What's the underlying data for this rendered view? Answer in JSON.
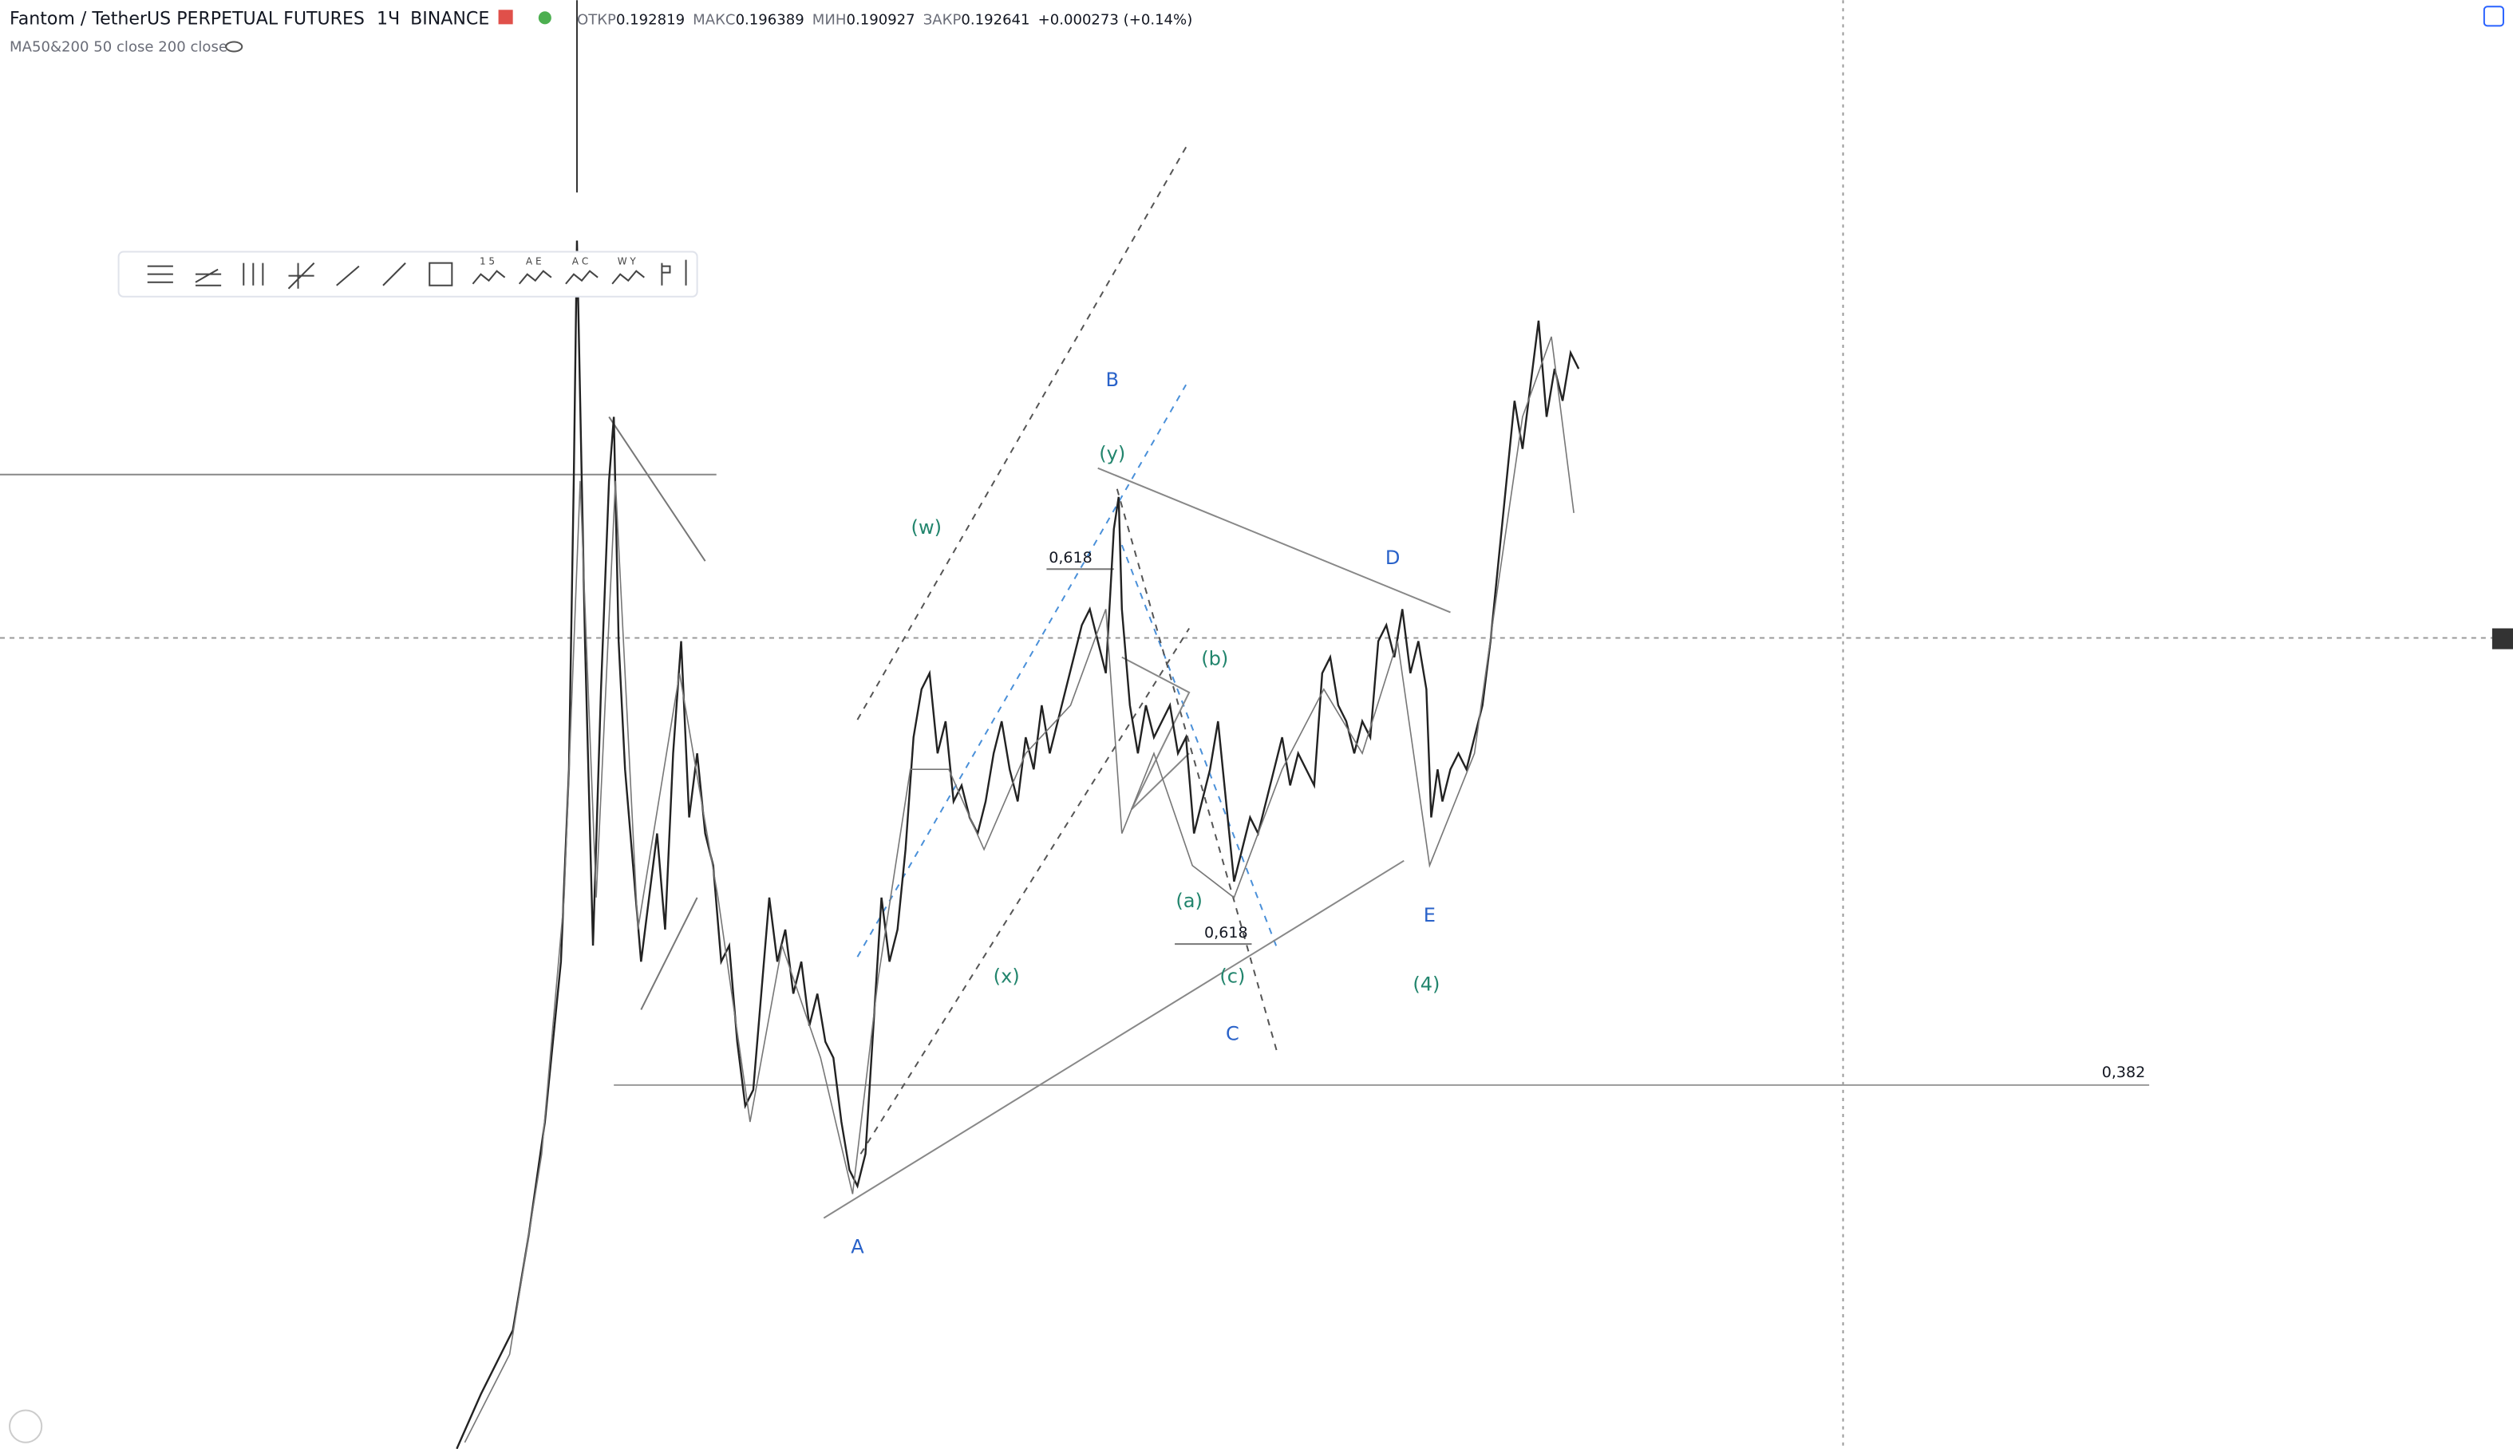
{
  "header": {
    "symbol": "Fantom / TetherUS PERPETUAL FUTURES",
    "interval": "1Ч",
    "exchange": "BINANCE",
    "ohlc": [
      {
        "label": "ОТКР",
        "value": "0.192819"
      },
      {
        "label": "МАКС",
        "value": "0.196389"
      },
      {
        "label": "МИН",
        "value": "0.190927"
      },
      {
        "label": "ЗАКР",
        "value": "0.192641"
      }
    ],
    "change": "+0.000273 (+0.14%)",
    "indicator": "MA50&200 50 close 200 close"
  },
  "toolbar": {
    "labels": [
      "1 5",
      "A E",
      "A C",
      "W Y"
    ]
  },
  "annotations": [
    "B",
    "(y)",
    "(w)",
    "D",
    "0,618",
    "(b)",
    "(a)",
    "0,618",
    "(x)",
    "(c)",
    "C",
    "E",
    "(4)",
    "A",
    "0,382"
  ]
}
